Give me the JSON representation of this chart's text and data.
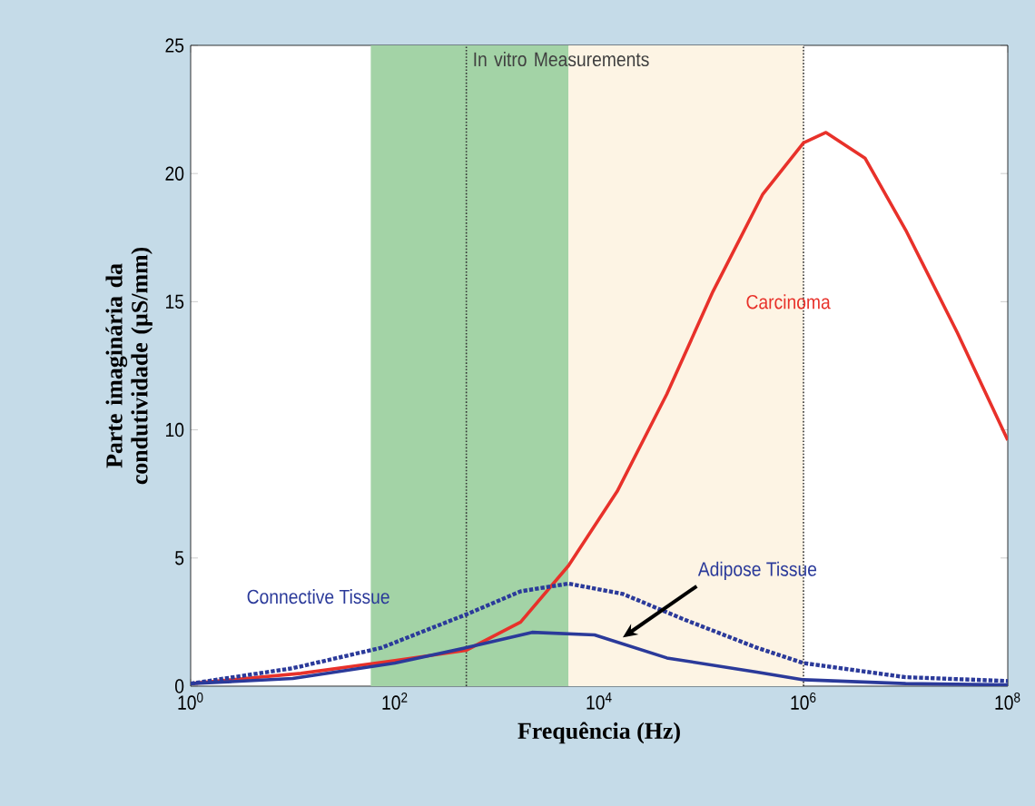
{
  "chart_data": {
    "type": "line",
    "xlabel": "Frequência (Hz)",
    "ylabel": "Parte imaginária da condutividade (µS/mm)",
    "log": "x",
    "xlim": [
      1,
      100000000
    ],
    "ylim": [
      0,
      25
    ],
    "xticks": [
      {
        "value": 1,
        "label": "10$^{0}$"
      },
      {
        "value": 100,
        "label": "10$^{2}$"
      },
      {
        "value": 10000,
        "label": "10$^{4}$"
      },
      {
        "value": 1000000,
        "label": "10$^{6}$"
      },
      {
        "value": 100000000,
        "label": "10$^{8}$"
      }
    ],
    "yticks": [
      0,
      5,
      10,
      15,
      20,
      25
    ],
    "series": [
      {
        "name": "Carcinoma",
        "color": "#e8312a",
        "line_style": "solid",
        "x": [
          1,
          12,
          100,
          500,
          1700,
          5000,
          15000,
          46000,
          130000,
          400000,
          1000000,
          1660000,
          4000000,
          10000000,
          32000000,
          100000000
        ],
        "values": [
          0.1,
          0.5,
          1.0,
          1.4,
          2.5,
          4.7,
          7.6,
          11.4,
          15.4,
          19.2,
          21.2,
          21.6,
          20.6,
          17.8,
          13.8,
          9.6
        ]
      },
      {
        "name": "Adipose Tissue",
        "color": "#2b3a9a",
        "line_style": "solid",
        "x": [
          1,
          10,
          100,
          500,
          2200,
          9000,
          46000,
          350000,
          1000000,
          10000000,
          100000000
        ],
        "values": [
          0.1,
          0.3,
          0.9,
          1.5,
          2.1,
          2.0,
          1.1,
          0.55,
          0.25,
          0.1,
          0.05
        ]
      },
      {
        "name": "Connective Tissue",
        "color": "#2b3a9a",
        "line_style": "dotted",
        "x": [
          1,
          10,
          74,
          500,
          1700,
          5000,
          17000,
          68000,
          350000,
          1000000,
          10000000,
          100000000
        ],
        "values": [
          0.1,
          0.7,
          1.5,
          2.8,
          3.7,
          4.0,
          3.6,
          2.6,
          1.5,
          0.9,
          0.35,
          0.2
        ]
      }
    ],
    "bands": [
      {
        "axis": "x",
        "from": 58,
        "to": 5000,
        "color": "#a3d3a6"
      },
      {
        "axis": "x",
        "from": 5000,
        "to": 1000000,
        "color": "#fdf4e4"
      }
    ],
    "ref_lines": [
      {
        "axis": "x",
        "value": 500,
        "color": "#333333",
        "line_style": "dotted"
      },
      {
        "axis": "x",
        "value": 1000000,
        "color": "#333333",
        "line_style": "dotted"
      }
    ],
    "annotations": [
      "In vitro Measurements"
    ]
  }
}
